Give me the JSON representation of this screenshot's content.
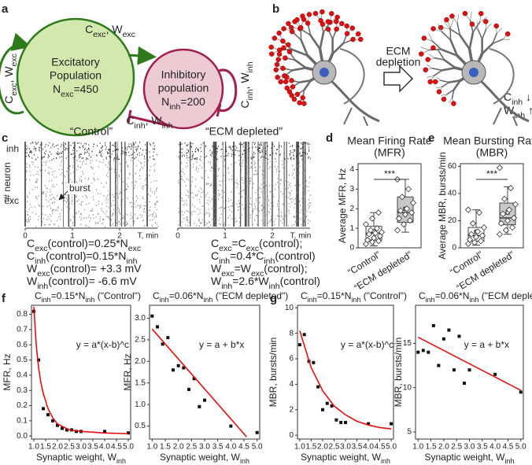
{
  "panel_labels": [
    "a",
    "b",
    "c",
    "d",
    "e",
    "f",
    "g"
  ],
  "diagram_a": {
    "excitatory": [
      "Excitatory",
      "Population",
      [
        "N",
        "exc",
        "=450"
      ]
    ],
    "inhibitory": [
      "Inhibitory",
      "population",
      [
        "N",
        "inh",
        "=200"
      ]
    ],
    "exc_to_inh": [
      "C",
      "exc",
      ", W",
      "exc"
    ],
    "exc_self": [
      "C",
      "exc",
      ", W",
      "exc"
    ],
    "inh_self": [
      "C",
      "inh",
      ", W",
      "inh"
    ],
    "inh_to_exc": [
      "C",
      "inh",
      ", W",
      "inh"
    ]
  },
  "diagram_b": {
    "arrow_label": [
      "ECM",
      "depletion"
    ],
    "changes": [
      [
        "C",
        "inh",
        " ↓"
      ],
      [
        "W",
        "inh",
        " ↑"
      ]
    ]
  },
  "raster": {
    "ylabel": "# neuron",
    "groups": [
      "inh",
      "exc"
    ],
    "annotation": "burst",
    "xlim": [
      0,
      2.8
    ],
    "xticks": [
      0,
      1,
      2
    ],
    "xlabel": "T, min",
    "plots": [
      {
        "title": "“Control”",
        "equations": [
          [
            "C",
            "exc",
            "(control)=0.25*N",
            "exc"
          ],
          [
            "C",
            "inh",
            "(control)=0.15*N",
            "inh"
          ],
          [
            "W",
            "exc",
            "(control)= +3.3 mV"
          ],
          [
            "W",
            "inh",
            "(control)= -6.6 mV"
          ]
        ]
      },
      {
        "title": "“ECM depleted”",
        "equations": [
          [
            "C",
            "exc",
            "=C",
            "exc",
            "(control);"
          ],
          [
            "C",
            "inh",
            "=0.4*C",
            "inh",
            "(control)"
          ],
          [
            "W",
            "exc",
            "=W",
            "exc",
            "(control);"
          ],
          [
            "W",
            "inh",
            "=2.6*W",
            "inh",
            "(control)"
          ]
        ]
      }
    ]
  },
  "chart_data": [
    {
      "type": "box",
      "title_lines": [
        "Mean Firing Rate",
        "(MFR)"
      ],
      "ylabel": "Average MFR, Hz",
      "ylim": [
        0,
        4.3
      ],
      "yticks": [
        0,
        1,
        2,
        3,
        4
      ],
      "categories": [
        "“Control”",
        "“ECM depleted”"
      ],
      "significance": "***",
      "boxes": [
        {
          "color": "#ffffff",
          "q1": 0.4,
          "median": 0.75,
          "q3": 1.1,
          "whisker_low": 0.1,
          "whisker_high": 1.8,
          "mean": 0.85,
          "points": [
            0.2,
            0.3,
            0.35,
            0.4,
            0.5,
            0.6,
            0.7,
            0.75,
            0.8,
            0.9,
            1.0,
            1.2,
            1.5,
            1.8
          ]
        },
        {
          "color": "#c8c8c8",
          "q1": 1.3,
          "median": 1.8,
          "q3": 2.6,
          "whisker_low": 0.8,
          "whisker_high": 3.5,
          "mean": 2.0,
          "points": [
            0.9,
            1.2,
            1.4,
            1.5,
            1.7,
            1.8,
            1.9,
            2.0,
            2.3,
            2.6,
            3.0,
            3.5
          ]
        }
      ]
    },
    {
      "type": "box",
      "title_lines": [
        "Mean Bursting Rate",
        "(MBR)"
      ],
      "ylabel": "Average MBR, bursts/min",
      "ylim": [
        0,
        62
      ],
      "yticks": [
        0,
        20,
        40,
        60
      ],
      "categories": [
        "“Control”",
        "“ECM depleted”"
      ],
      "significance": "***",
      "boxes": [
        {
          "color": "#ffffff",
          "q1": 5,
          "median": 9,
          "q3": 15,
          "whisker_low": 2,
          "whisker_high": 28,
          "mean": 12,
          "points": [
            3,
            4,
            5,
            6,
            8,
            9,
            10,
            12,
            15,
            18,
            26,
            28
          ]
        },
        {
          "color": "#c8c8c8",
          "q1": 17,
          "median": 22,
          "q3": 33,
          "whisker_low": 10,
          "whisker_high": 45,
          "mean": 26,
          "points": [
            10,
            13,
            15,
            18,
            20,
            22,
            25,
            28,
            32,
            36,
            44,
            59
          ]
        }
      ]
    },
    {
      "type": "scatter",
      "title": [
        "C",
        "inh",
        "=0.15*N",
        "inh",
        " (\"Control\")"
      ],
      "xlabel": [
        "Synaptic weight, W",
        "inh"
      ],
      "ylabel": "MFR, Hz",
      "equation": "y = a*(x-b)^c",
      "xlim": [
        0.9,
        5.1
      ],
      "xticks": [
        {
          "value": 1,
          "label": "1.0"
        },
        1.5,
        {
          "value": 2,
          "label": "2.0"
        },
        2.5,
        {
          "value": 3,
          "label": "3.0"
        },
        3.5,
        {
          "value": 4,
          "label": "4.0"
        },
        4.5,
        {
          "value": 5,
          "label": "5.0"
        }
      ],
      "ylim": [
        -0.02,
        0.86
      ],
      "yticks": [
        {
          "value": 0,
          "label": "0.0"
        },
        0.1,
        0.2,
        0.3,
        0.4,
        0.5,
        0.6,
        0.7,
        0.8
      ],
      "series": [
        {
          "kind": "points",
          "color": "#111111",
          "x": [
            1.0,
            1.2,
            1.4,
            1.6,
            1.8,
            2.0,
            2.2,
            2.4,
            2.6,
            2.8,
            3.0,
            4.0,
            5.0
          ],
          "values": [
            0.82,
            0.5,
            0.18,
            0.14,
            0.1,
            0.07,
            0.05,
            0.04,
            0.04,
            0.03,
            0.03,
            0.03,
            0.02
          ]
        },
        {
          "kind": "line",
          "color": "#e01010",
          "x": [
            1.0,
            1.1,
            1.2,
            1.3,
            1.4,
            1.6,
            1.8,
            2.0,
            2.5,
            3.0,
            4.0,
            5.0
          ],
          "values": [
            0.85,
            0.6,
            0.45,
            0.35,
            0.28,
            0.18,
            0.12,
            0.08,
            0.04,
            0.03,
            0.02,
            0.015
          ]
        }
      ]
    },
    {
      "type": "scatter",
      "title": [
        "C",
        "inh",
        "=0.06*N",
        "inh",
        " (\"ECM depleted\")"
      ],
      "xlabel": [
        "Synaptic weight, W",
        "inh"
      ],
      "ylabel": "MFR, Hz",
      "equation": "y = a + b*x",
      "xlim": [
        0.9,
        5.1
      ],
      "xticks": [
        {
          "value": 1,
          "label": "1.0"
        },
        1.5,
        {
          "value": 2,
          "label": "2.0"
        },
        2.5,
        {
          "value": 3,
          "label": "3.0"
        },
        3.5,
        {
          "value": 4,
          "label": "4.0"
        },
        4.5,
        {
          "value": 5,
          "label": "5.0"
        }
      ],
      "ylim": [
        0.2,
        3.3
      ],
      "yticks": [
        0.5,
        {
          "value": 1,
          "label": "1.0"
        },
        1.5,
        {
          "value": 2,
          "label": "2.0"
        },
        2.5,
        {
          "value": 3,
          "label": "3.0"
        }
      ],
      "series": [
        {
          "kind": "points",
          "color": "#111111",
          "x": [
            1.0,
            1.2,
            1.4,
            1.6,
            1.8,
            2.0,
            2.2,
            2.4,
            2.6,
            2.8,
            3.0,
            4.0,
            5.0
          ],
          "values": [
            3.05,
            2.8,
            2.4,
            2.55,
            1.8,
            1.9,
            1.85,
            1.35,
            1.6,
            0.95,
            1.1,
            0.5,
            0.35
          ]
        },
        {
          "kind": "line",
          "color": "#e01010",
          "x": [
            1.0,
            4.6
          ],
          "values": [
            2.75,
            0.25
          ]
        }
      ]
    },
    {
      "type": "scatter",
      "title": [
        "C",
        "inh",
        "=0.15*N",
        "inh",
        " (\"Control\")"
      ],
      "xlabel": [
        "Synaptic weight, W",
        "inh"
      ],
      "ylabel": "MBR, bursts/min",
      "equation": "y = a*(x-b)^c",
      "xlim": [
        0.9,
        5.1
      ],
      "xticks": [
        {
          "value": 1,
          "label": "1.0"
        },
        1.5,
        {
          "value": 2,
          "label": "2.0"
        },
        2.5,
        {
          "value": 3,
          "label": "3.0"
        },
        3.5,
        {
          "value": 4,
          "label": "4.0"
        },
        4.5,
        {
          "value": 5,
          "label": "5.0"
        }
      ],
      "ylim": [
        -0.3,
        10.2
      ],
      "yticks": [
        0,
        2,
        4,
        6,
        8,
        10
      ],
      "series": [
        {
          "kind": "points",
          "color": "#111111",
          "x": [
            1.0,
            1.2,
            1.4,
            1.6,
            1.8,
            2.0,
            2.2,
            2.4,
            2.6,
            2.8,
            3.0,
            4.0,
            5.0
          ],
          "values": [
            7.1,
            7.9,
            5.8,
            5.7,
            3.8,
            2.0,
            2.5,
            2.3,
            1.2,
            1.0,
            1.0,
            0.9,
            0.9
          ]
        },
        {
          "kind": "line",
          "color": "#e01010",
          "x": [
            1.0,
            1.5,
            2.0,
            2.5,
            3.0,
            3.5,
            4.0,
            4.5,
            5.0
          ],
          "values": [
            8.2,
            5.3,
            3.5,
            2.3,
            1.6,
            1.1,
            0.8,
            0.6,
            0.5
          ]
        }
      ]
    },
    {
      "type": "scatter",
      "title": [
        "C",
        "inh",
        "=0.06*N",
        "inh",
        " (\"ECM depleted\")"
      ],
      "xlabel": [
        "Synaptic weight, W",
        "inh"
      ],
      "ylabel": "MBR, bursts/min",
      "equation": "y = a + b*x",
      "xlim": [
        0.9,
        5.1
      ],
      "xticks": [
        {
          "value": 1,
          "label": "1.0"
        },
        1.5,
        {
          "value": 2,
          "label": "2.0"
        },
        2.5,
        {
          "value": 3,
          "label": "3.0"
        },
        3.5,
        {
          "value": 4,
          "label": "4.0"
        },
        4.5,
        {
          "value": 5,
          "label": "5.0"
        }
      ],
      "ylim": [
        4.2,
        19.3
      ],
      "yticks": [
        5,
        10,
        15
      ],
      "series": [
        {
          "kind": "points",
          "color": "#111111",
          "x": [
            1.0,
            1.2,
            1.4,
            1.6,
            1.8,
            2.0,
            2.2,
            2.4,
            2.6,
            2.8,
            3.0,
            4.0,
            5.0
          ],
          "values": [
            14,
            14.2,
            14,
            17,
            12.5,
            15.5,
            16.5,
            12,
            15.8,
            10.5,
            12,
            11.5,
            9.5
          ]
        },
        {
          "kind": "line",
          "color": "#e01010",
          "x": [
            1.0,
            5.0
          ],
          "values": [
            15.7,
            9.7
          ]
        }
      ]
    }
  ]
}
